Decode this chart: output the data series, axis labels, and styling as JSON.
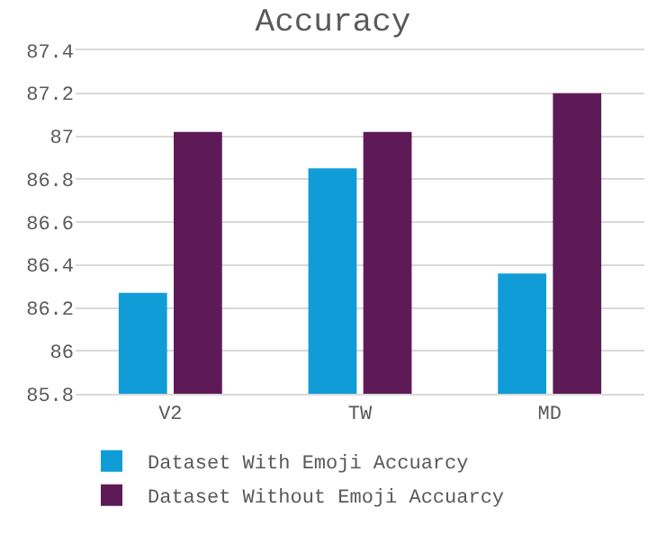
{
  "chart_data": {
    "type": "bar",
    "title": "Accuracy",
    "categories": [
      "V2",
      "TW",
      "MD"
    ],
    "series": [
      {
        "name": "Dataset With Emoji Accuarcy",
        "color": "#109dd7",
        "values": [
          86.27,
          86.85,
          86.36
        ]
      },
      {
        "name": "Dataset Without Emoji Accuarcy",
        "color": "#5e1a57",
        "values": [
          87.02,
          87.02,
          87.2
        ]
      }
    ],
    "ylim": [
      85.8,
      87.4
    ],
    "yticks": [
      85.8,
      86,
      86.2,
      86.4,
      86.6,
      86.8,
      87,
      87.2,
      87.4
    ],
    "grid": "y",
    "legend": "bottom"
  }
}
